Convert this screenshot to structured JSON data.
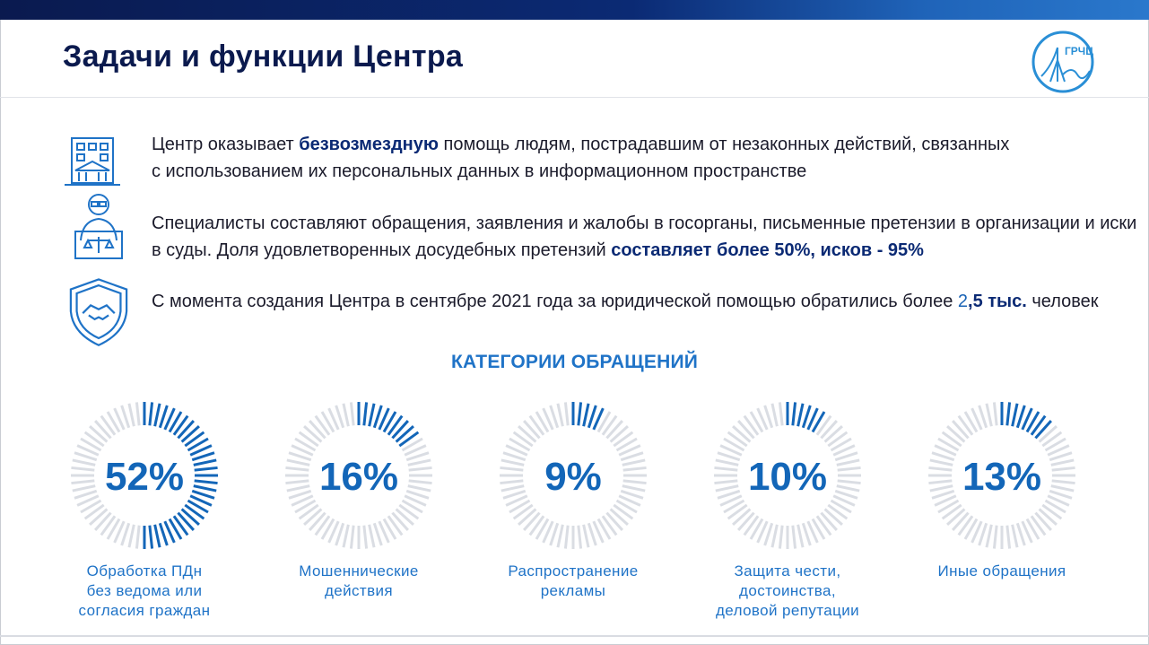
{
  "page": {
    "title": "Задачи и функции Центра",
    "logo_text": "ГРЧЦ"
  },
  "items": [
    {
      "icon": "government-building-icon",
      "segments": [
        {
          "t": "Центр оказывает ",
          "s": "normal"
        },
        {
          "t": "безвозмездную",
          "s": "bold"
        },
        {
          "t": " помощь людям, пострадавшим от незаконных действий, связанных",
          "s": "normal"
        },
        {
          "t": "\nс использованием их персональных данных в информационном пространстве",
          "s": "normal"
        }
      ]
    },
    {
      "icon": "lawyer-icon",
      "segments": [
        {
          "t": "Специалисты составляют обращения, заявления и жалобы в госорганы, письменные претензии в организации и иски",
          "s": "normal"
        },
        {
          "t": "\nв суды. Доля удовлетворенных досудебных претензий ",
          "s": "normal"
        },
        {
          "t": "составляет более 50%, исков - 95%",
          "s": "bold"
        }
      ]
    },
    {
      "icon": "handshake-shield-icon",
      "segments": [
        {
          "t": "С момента создания Центра в сентябре 2021 года за юридической помощью обратились более ",
          "s": "normal"
        },
        {
          "t": "2",
          "s": "accent"
        },
        {
          "t": ",5 тыс.",
          "s": "bold"
        },
        {
          "t": " человек",
          "s": "normal"
        }
      ]
    }
  ],
  "section_title": "КАТЕГОРИИ ОБРАЩЕНИЙ",
  "colors": {
    "accent": "#1366b8",
    "dark_navy": "#0b1a4e",
    "track": "#dadde3",
    "label": "#1f73c7"
  },
  "chart_data": {
    "type": "pie",
    "title": "КАТЕГОРИИ ОБРАЩЕНИЙ",
    "categories": [
      "Обработка ПДн без ведома или согласия граждан",
      "Мошеннические действия",
      "Распространение рекламы",
      "Защита чести, достоинства, деловой репутации",
      "Иные обращения"
    ],
    "values": [
      52,
      16,
      9,
      10,
      13
    ],
    "value_labels": [
      "52%",
      "16%",
      "9%",
      "10%",
      "13%"
    ],
    "label_lines": [
      [
        "Обработка ПДн",
        "без ведома или",
        "согласия граждан"
      ],
      [
        "Мошеннические",
        "действия"
      ],
      [
        "Распространение",
        "рекламы"
      ],
      [
        "Защита чести,",
        "достоинства,",
        "деловой репутации"
      ],
      [
        "Иные обращения"
      ]
    ]
  }
}
